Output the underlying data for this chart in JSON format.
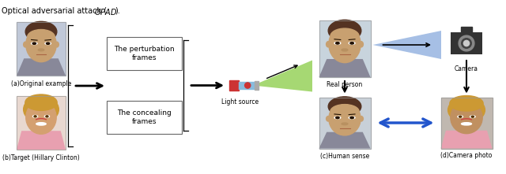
{
  "background_color": "#ffffff",
  "title_text": "Optical adversarial attack (",
  "title_italic": "OPAD",
  "title_end": ").",
  "box1_text": "The perturbation\nframes",
  "box2_text": "The concealing\nframes",
  "label_a": "(a)Original example",
  "label_b": "(b)Target (Hillary Clinton)",
  "label_light": "Light source",
  "label_real": "Real person",
  "label_camera": "Camera",
  "label_human": "(c)Human sense",
  "label_camera_photo": "(d)Camera photo",
  "face_skin1": "#c8a070",
  "face_skin2": "#d4956a",
  "face_bg1": "#b8c8d8",
  "face_bg2": "#e0d0c0",
  "arrow_color": "#000000",
  "box_edge_color": "#666666",
  "blue_arrow_color": "#2255cc",
  "green_beam_color": "#88cc44",
  "blue_beam_color": "#88aadd",
  "flash_body": "#88bbdd",
  "flash_red": "#cc3333",
  "flash_grey": "#aaaaaa",
  "camera_dark": "#333333",
  "camera_mid": "#888888",
  "camera_light": "#cccccc"
}
